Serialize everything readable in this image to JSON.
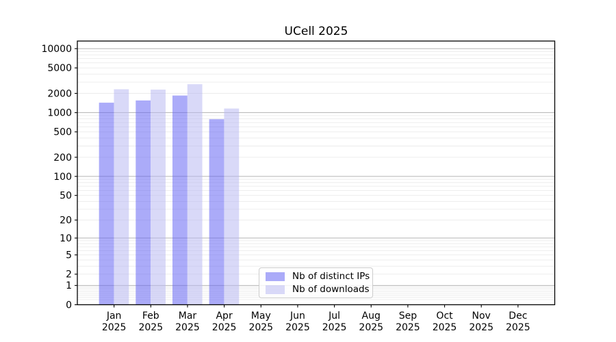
{
  "chart_data": {
    "type": "bar",
    "title": "UCell 2025",
    "x_months": [
      "Jan",
      "Feb",
      "Mar",
      "Apr",
      "May",
      "Jun",
      "Jul",
      "Aug",
      "Sep",
      "Oct",
      "Nov",
      "Dec"
    ],
    "x_year": "2025",
    "series": [
      {
        "name": "Nb of distinct IPs",
        "color": "rgba(93,93,244,0.52)",
        "values": [
          1430,
          1550,
          1850,
          790,
          null,
          null,
          null,
          null,
          null,
          null,
          null,
          null
        ]
      },
      {
        "name": "Nb of downloads",
        "color": "rgba(183,183,241,0.52)",
        "values": [
          2320,
          2290,
          2780,
          1160,
          null,
          null,
          null,
          null,
          null,
          null,
          null,
          null
        ]
      }
    ],
    "y_axis": {
      "scale": "log1p",
      "tick_labels": [
        0,
        1,
        2,
        5,
        10,
        20,
        50,
        100,
        200,
        500,
        1000,
        2000,
        5000,
        10000
      ],
      "major_gridlines_at": [
        1,
        10,
        100,
        1000,
        10000
      ]
    },
    "grid": {
      "major_color": "#b3b3b3",
      "minor_color": "#ebebeb"
    },
    "axes": {
      "spine_color": "#000000",
      "text_color": "#000000",
      "background": "#ffffff"
    },
    "legend_position": "lower center-left inside plot"
  }
}
